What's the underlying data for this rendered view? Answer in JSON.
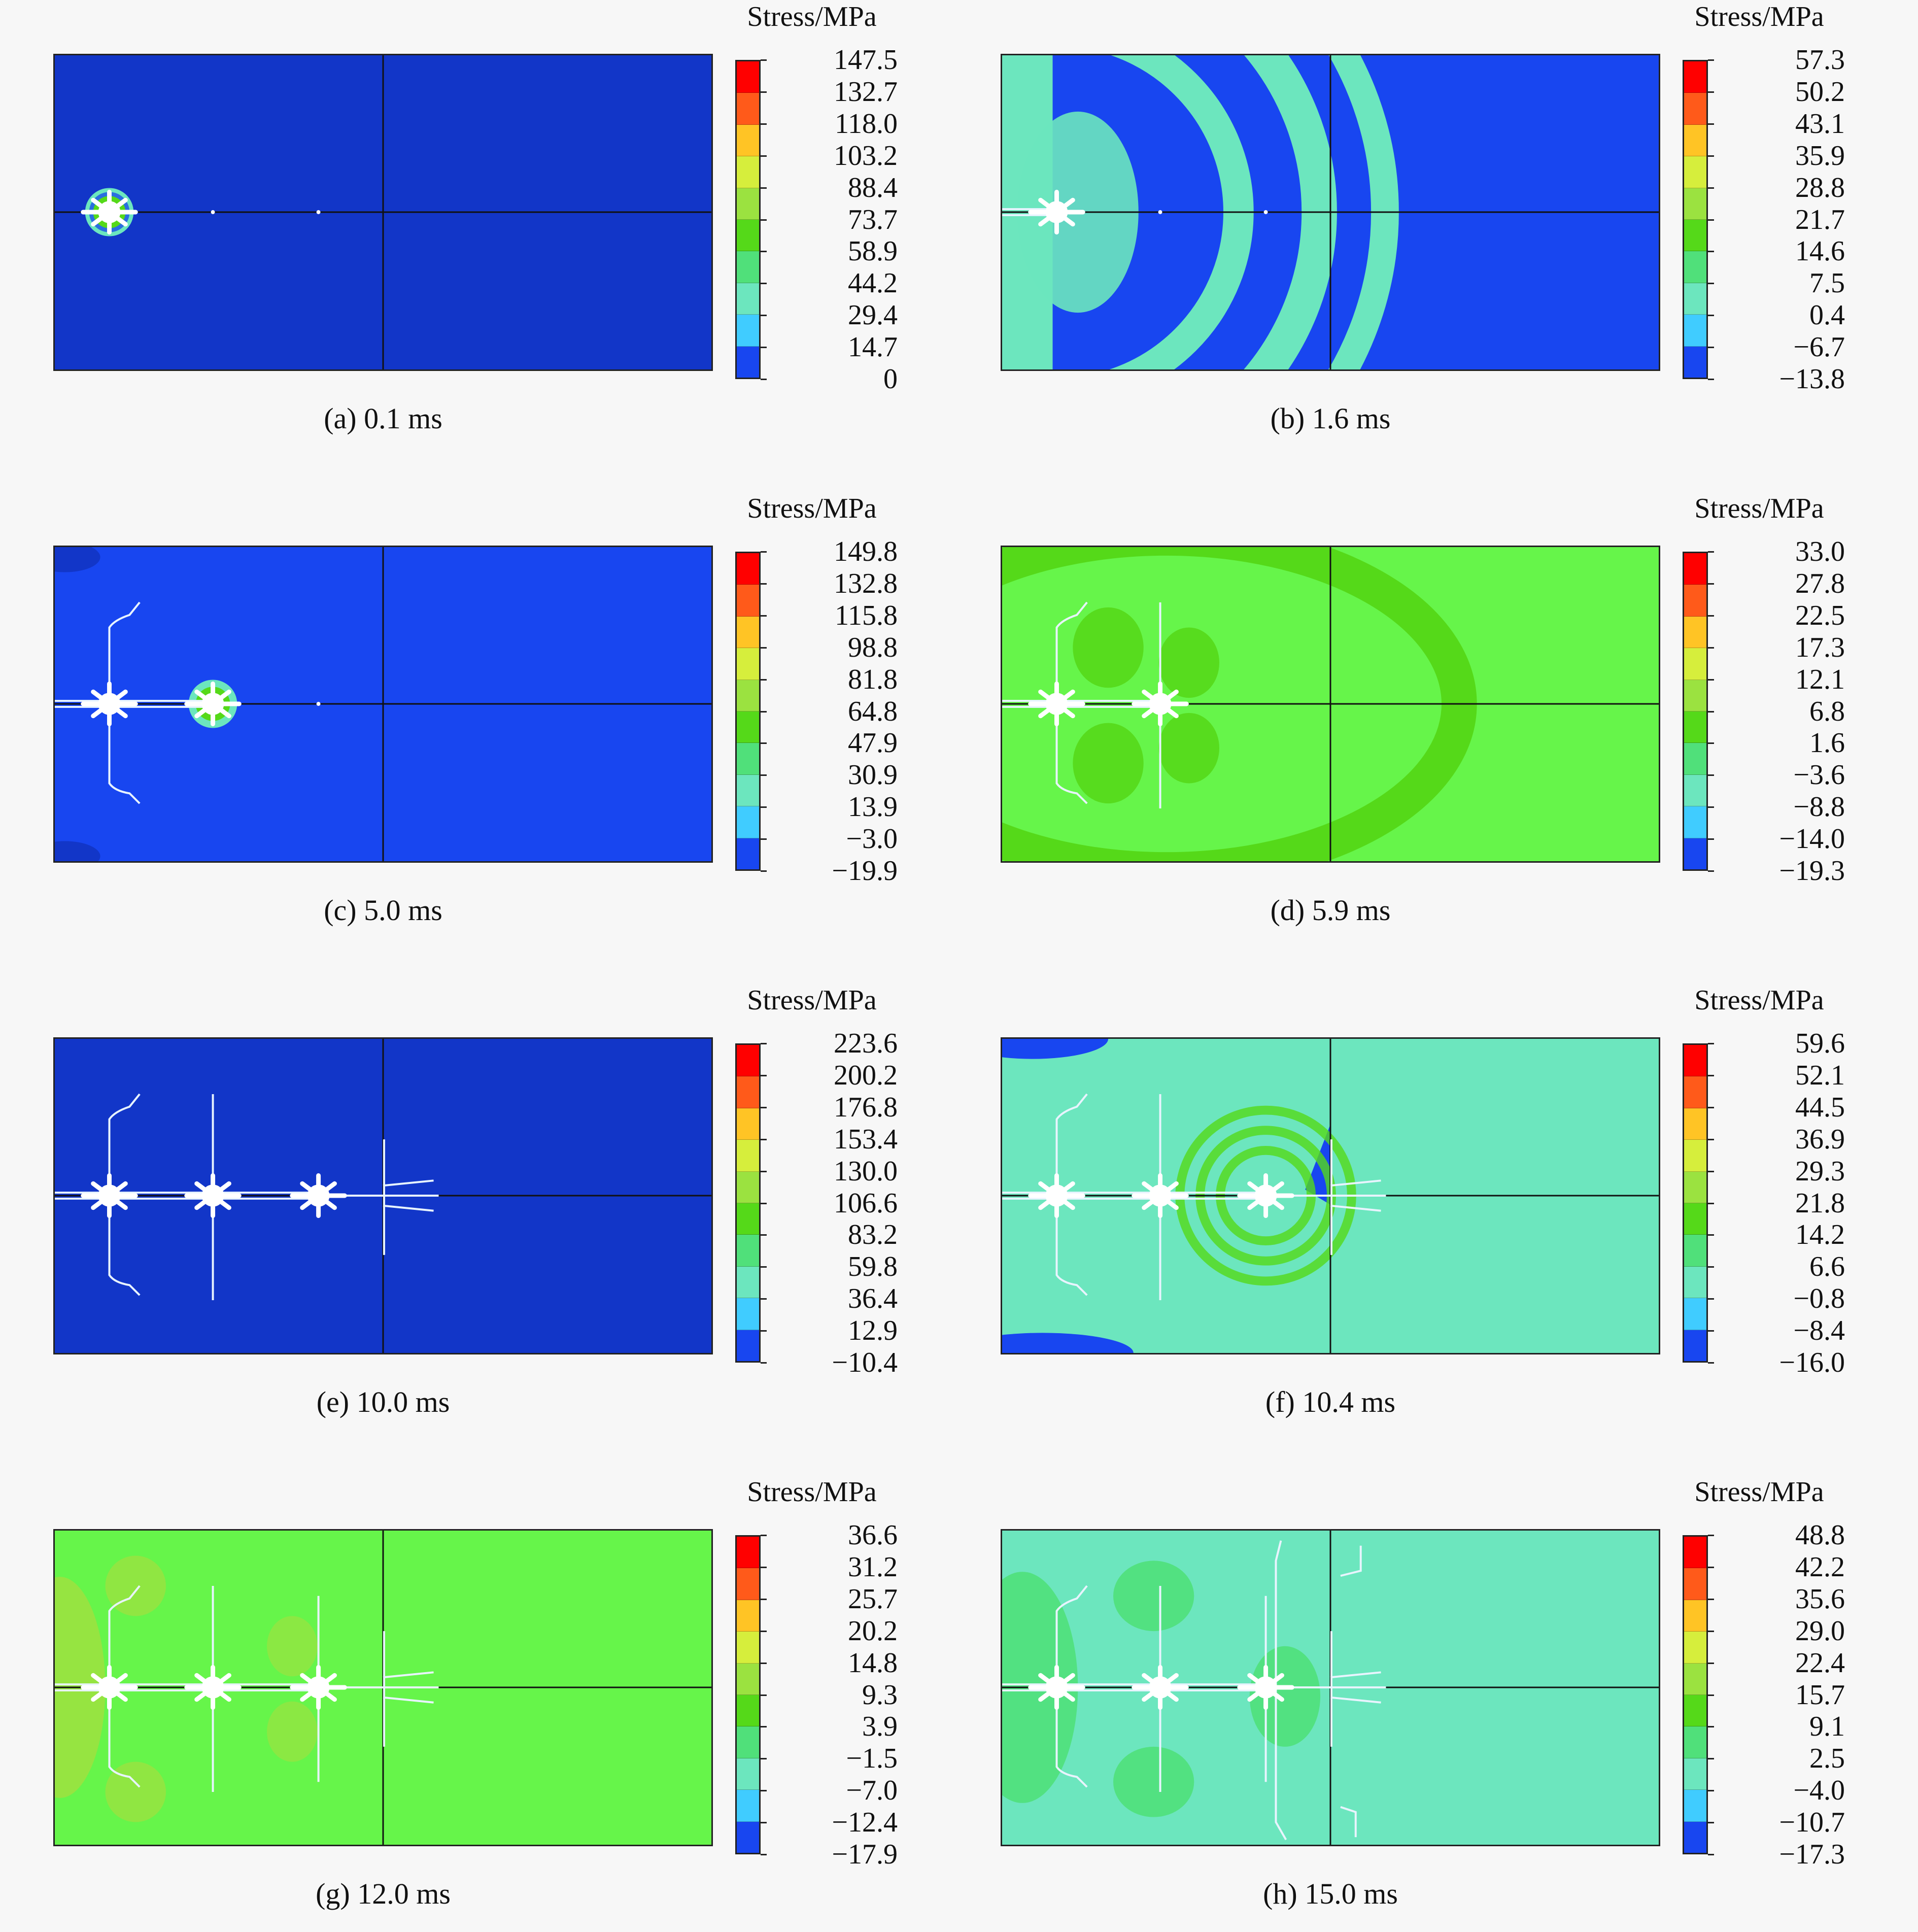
{
  "figure": {
    "legend_title": "Stress/MPa",
    "colorbar_colors": [
      "#ff0000",
      "#ff5a1a",
      "#ffc425",
      "#d6ee3c",
      "#9be240",
      "#55d919",
      "#50e07a",
      "#6ce6be",
      "#40ccff",
      "#1846f0"
    ],
    "panels": [
      {
        "caption": "(a) 0.1 ms",
        "ticks": [
          "147.5",
          "132.7",
          "118.0",
          "103.2",
          "88.4",
          "73.7",
          "58.9",
          "44.2",
          "29.4",
          "14.7",
          "0"
        ],
        "background_color": "#1236c8",
        "blast_holes": 1
      },
      {
        "caption": "(b) 1.6 ms",
        "ticks": [
          "57.3",
          "50.2",
          "43.1",
          "35.9",
          "28.8",
          "21.7",
          "14.6",
          "7.5",
          "0.4",
          "−6.7",
          "−13.8"
        ],
        "background_color": "#1846f0",
        "blast_holes": 1
      },
      {
        "caption": "(c) 5.0 ms",
        "ticks": [
          "149.8",
          "132.8",
          "115.8",
          "98.8",
          "81.8",
          "64.8",
          "47.9",
          "30.9",
          "13.9",
          "−3.0",
          "−19.9"
        ],
        "background_color": "#1846f0",
        "blast_holes": 2
      },
      {
        "caption": "(d) 5.9 ms",
        "ticks": [
          "33.0",
          "27.8",
          "22.5",
          "17.3",
          "12.1",
          "6.8",
          "1.6",
          "−3.6",
          "−8.8",
          "−14.0",
          "−19.3"
        ],
        "background_color": "#66f54a",
        "blast_holes": 2
      },
      {
        "caption": "(e) 10.0 ms",
        "ticks": [
          "223.6",
          "200.2",
          "176.8",
          "153.4",
          "130.0",
          "106.6",
          "83.2",
          "59.8",
          "36.4",
          "12.9",
          "−10.4"
        ],
        "background_color": "#1236c8",
        "blast_holes": 3
      },
      {
        "caption": "(f) 10.4 ms",
        "ticks": [
          "59.6",
          "52.1",
          "44.5",
          "36.9",
          "29.3",
          "21.8",
          "14.2",
          "6.6",
          "−0.8",
          "−8.4",
          "−16.0"
        ],
        "background_color": "#6ce6be",
        "blast_holes": 3
      },
      {
        "caption": "(g) 12.0 ms",
        "ticks": [
          "36.6",
          "31.2",
          "25.7",
          "20.2",
          "14.8",
          "9.3",
          "3.9",
          "−1.5",
          "−7.0",
          "−12.4",
          "−17.9"
        ],
        "background_color": "#66f54a",
        "blast_holes": 3
      },
      {
        "caption": "(h) 15.0 ms",
        "ticks": [
          "48.8",
          "42.2",
          "35.6",
          "29.0",
          "22.4",
          "15.7",
          "9.1",
          "2.5",
          "−4.0",
          "−10.7",
          "−17.3"
        ],
        "background_color": "#6ce6be",
        "blast_holes": 3
      }
    ]
  }
}
